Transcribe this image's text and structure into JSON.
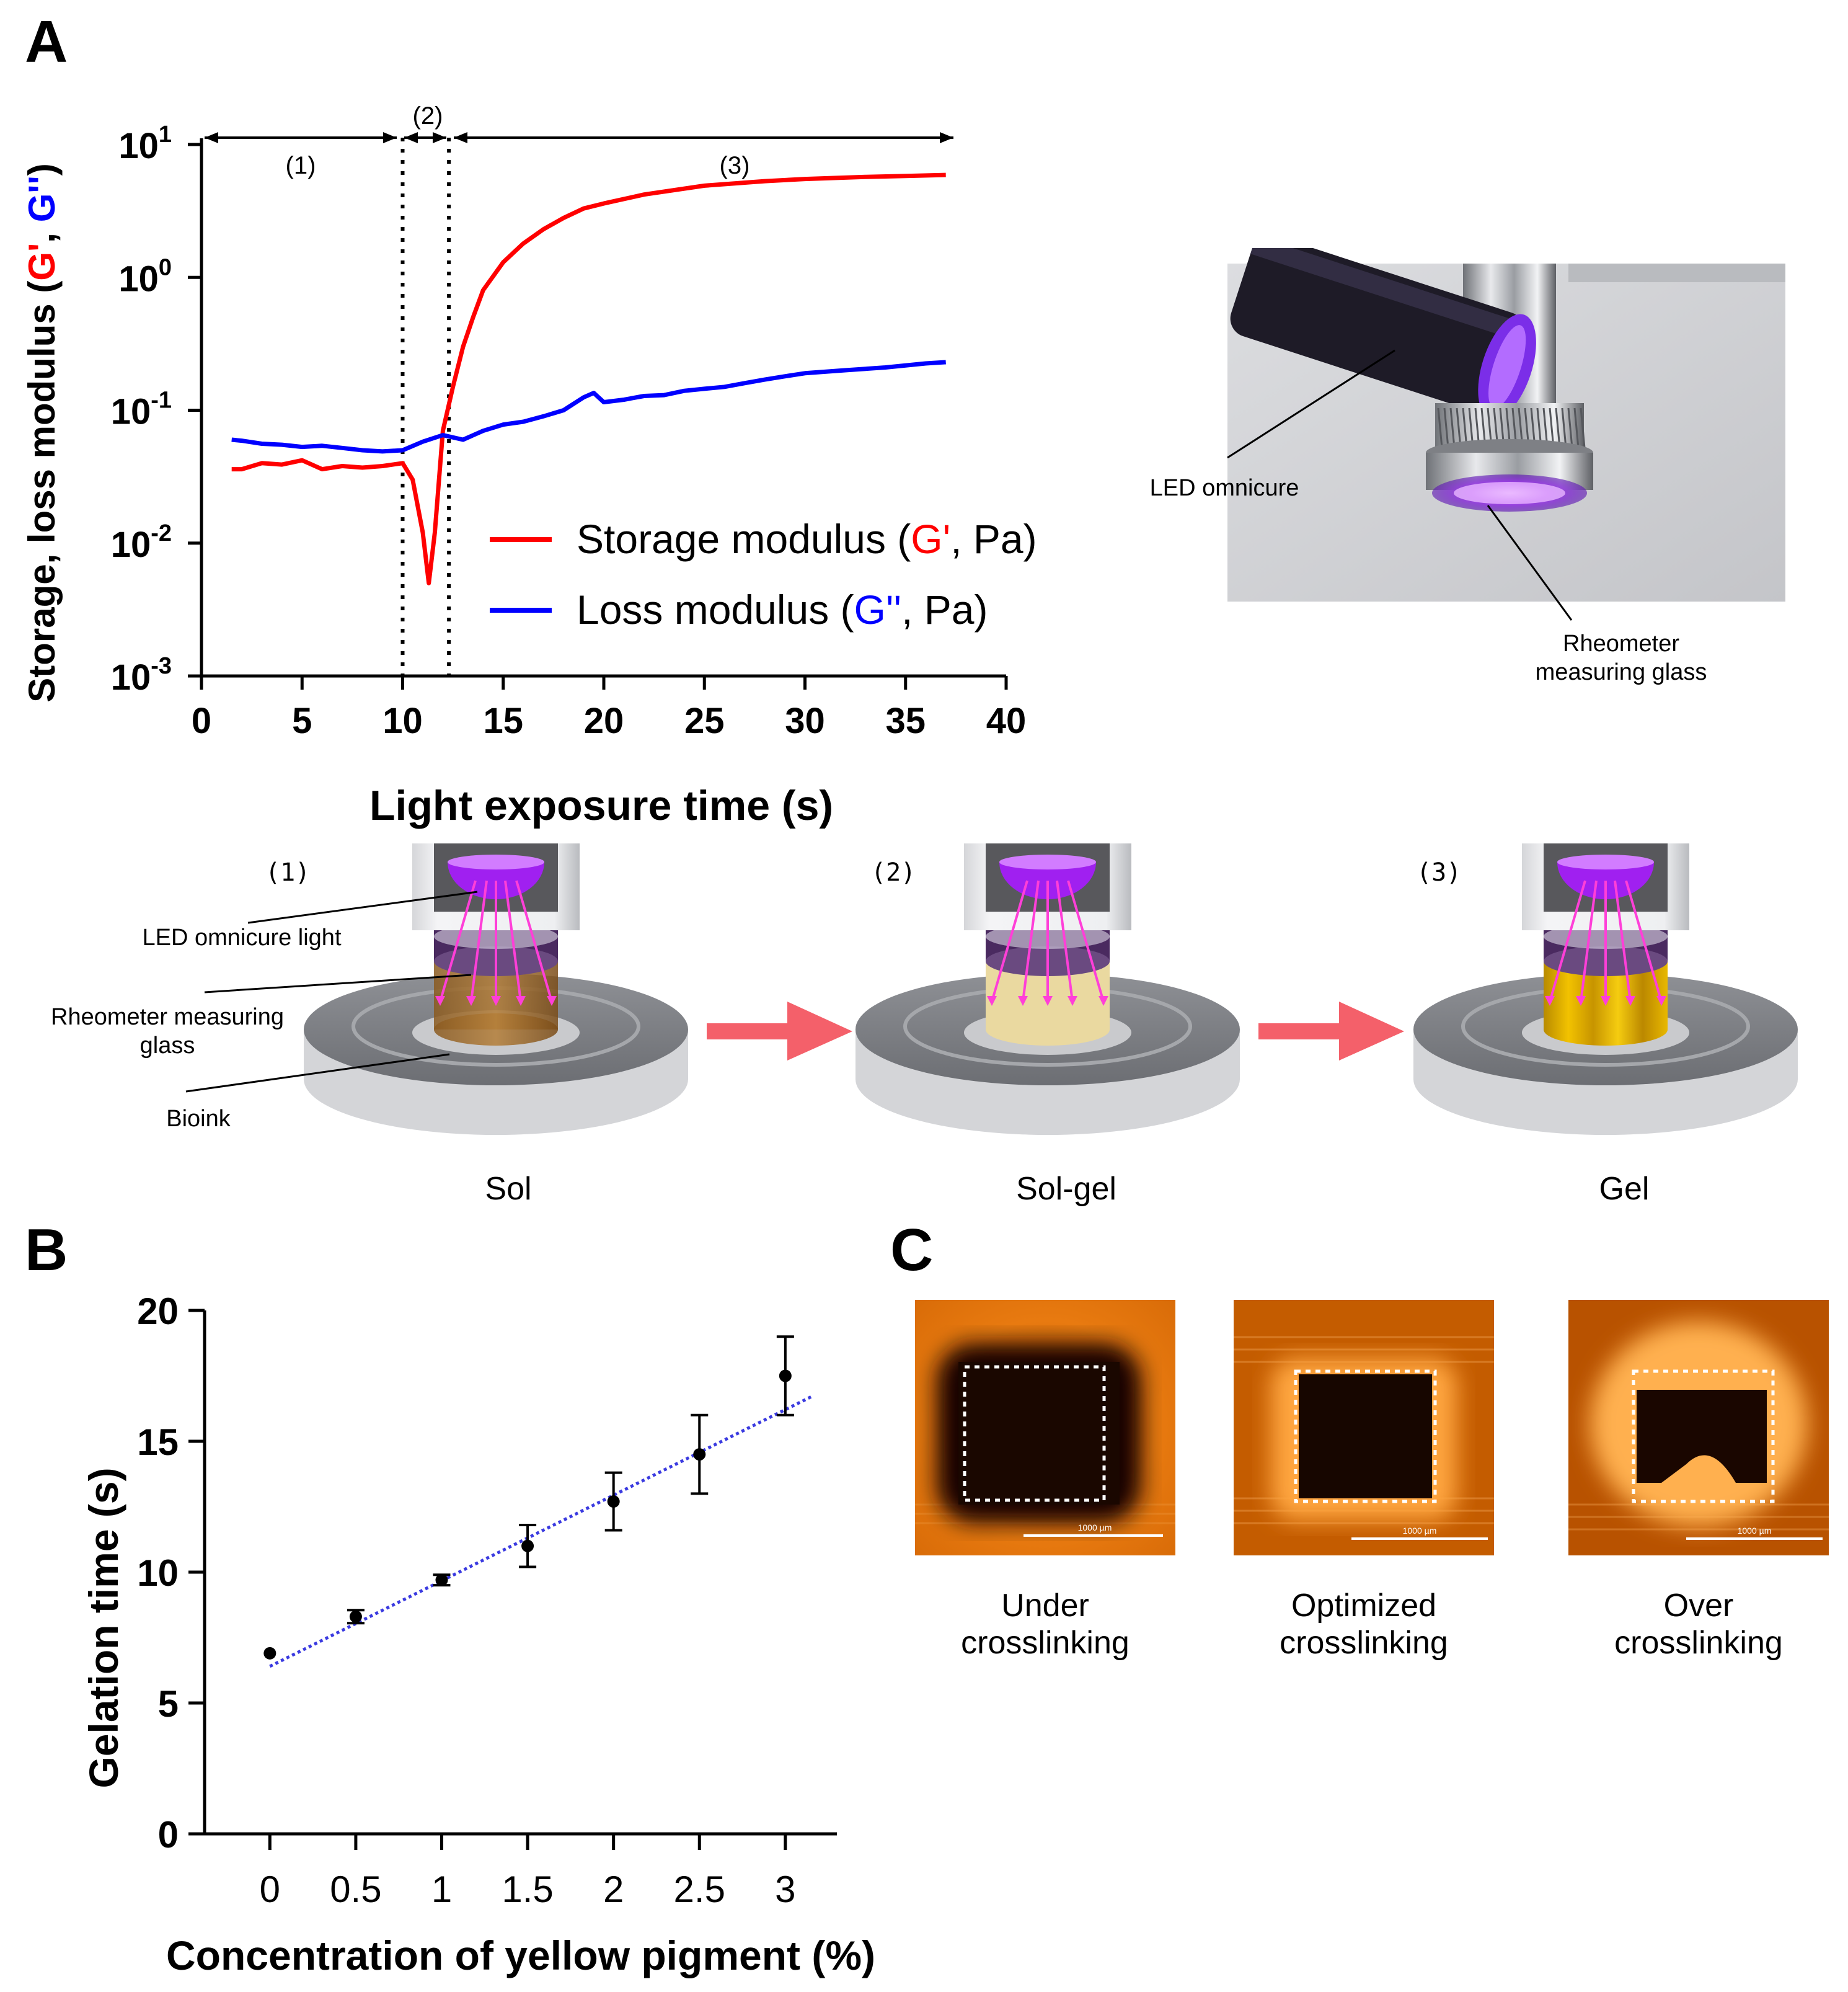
{
  "panels": {
    "a": "A",
    "b": "B",
    "c": "C"
  },
  "colors": {
    "storage": "#ff0000",
    "loss": "#0000ff",
    "fit": "#3a3ae0",
    "orange": "#e07a10",
    "purple": "#9b30e0",
    "arrow": "#f4606a"
  },
  "chart_data": [
    {
      "type": "line",
      "panel": "A",
      "xlabel": "Light exposure time (s)",
      "ylabel_parts": [
        "Storage, loss modulus (",
        "G'",
        ", ",
        "G''",
        ")"
      ],
      "xlim": [
        0,
        40
      ],
      "ylim_log10": [
        -3,
        1
      ],
      "x_ticks": [
        "0",
        "5",
        "10",
        "15",
        "20",
        "25",
        "30",
        "35",
        "40"
      ],
      "y_ticks": [
        {
          "base": "10",
          "exp": "1"
        },
        {
          "base": "10",
          "exp": "0"
        },
        {
          "base": "10",
          "exp": "-1"
        },
        {
          "base": "10",
          "exp": "-2"
        },
        {
          "base": "10",
          "exp": "-3"
        }
      ],
      "phases": [
        {
          "label": "(1)",
          "from": 0,
          "to": 10
        },
        {
          "label": "(2)",
          "from": 10,
          "to": 12.3
        },
        {
          "label": "(3)",
          "from": 12.3,
          "to": 37
        }
      ],
      "dividers": [
        10,
        12.3
      ],
      "legend": [
        {
          "pre": "Storage modulus (",
          "sym": "G'",
          "post": ", Pa)"
        },
        {
          "pre": "Loss modulus (",
          "sym": "G''",
          "post": ", Pa)"
        }
      ],
      "series": [
        {
          "name": "Storage modulus (G', Pa)",
          "x": [
            1.5,
            2,
            3,
            4,
            5,
            6,
            7,
            8,
            9,
            10,
            10.5,
            11,
            11.3,
            11.6,
            12,
            12.5,
            13,
            13.5,
            14,
            15,
            16,
            17,
            18,
            19,
            20,
            22,
            25,
            28,
            30,
            33,
            35,
            37
          ],
          "y": [
            0.036,
            0.036,
            0.04,
            0.039,
            0.042,
            0.036,
            0.038,
            0.037,
            0.038,
            0.04,
            0.03,
            0.012,
            0.005,
            0.012,
            0.07,
            0.15,
            0.3,
            0.5,
            0.8,
            1.3,
            1.8,
            2.3,
            2.8,
            3.3,
            3.6,
            4.2,
            4.9,
            5.3,
            5.5,
            5.7,
            5.8,
            5.9
          ]
        },
        {
          "name": "Loss modulus (G'', Pa)",
          "x": [
            1.5,
            2,
            3,
            4,
            5,
            6,
            7,
            8,
            9,
            10,
            11,
            12,
            13,
            14,
            15,
            16,
            17,
            18,
            19,
            19.5,
            20,
            21,
            22,
            23,
            24,
            25,
            26,
            27,
            28,
            29,
            30,
            32,
            34,
            36,
            37
          ],
          "y": [
            0.06,
            0.059,
            0.056,
            0.055,
            0.053,
            0.054,
            0.052,
            0.05,
            0.049,
            0.05,
            0.058,
            0.065,
            0.06,
            0.07,
            0.078,
            0.082,
            0.09,
            0.1,
            0.125,
            0.135,
            0.115,
            0.12,
            0.128,
            0.13,
            0.14,
            0.145,
            0.15,
            0.16,
            0.17,
            0.18,
            0.19,
            0.2,
            0.21,
            0.225,
            0.23
          ]
        }
      ]
    },
    {
      "type": "scatter",
      "panel": "B",
      "xlabel": "Concentration of yellow pigment (%)",
      "ylabel": "Gelation time (s)",
      "ylim": [
        0,
        20
      ],
      "x_ticks": [
        "0",
        "0.5",
        "1",
        "1.5",
        "2",
        "2.5",
        "3"
      ],
      "y_ticks": [
        "20",
        "15",
        "10",
        "5",
        "0"
      ],
      "x": [
        0,
        0.5,
        1,
        1.5,
        2,
        2.5,
        3
      ],
      "y": [
        6.9,
        8.3,
        9.7,
        11.0,
        12.7,
        14.5,
        17.5
      ],
      "err": [
        0,
        0.25,
        0.2,
        0.8,
        1.1,
        1.5,
        1.5
      ],
      "fit": {
        "x": [
          0,
          3.15
        ],
        "y": [
          6.4,
          16.7
        ]
      }
    }
  ],
  "photo": {
    "led_label": "LED omnicure",
    "glass_label": "Rheometer measuring glass"
  },
  "schematic": {
    "stages": [
      {
        "num": "(1)",
        "state": "Sol"
      },
      {
        "num": "(2)",
        "state": "Sol-gel"
      },
      {
        "num": "(3)",
        "state": "Gel"
      }
    ],
    "callouts": [
      "LED omnicure light",
      "Rheometer measuring glass",
      "Bioink"
    ]
  },
  "micrographs": [
    {
      "caption_line1": "Under",
      "caption_line2": "crosslinking",
      "scale": "1000 µm"
    },
    {
      "caption_line1": "Optimized",
      "caption_line2": "crosslinking",
      "scale": "1000 µm"
    },
    {
      "caption_line1": "Over",
      "caption_line2": "crosslinking",
      "scale": "1000 µm"
    }
  ]
}
